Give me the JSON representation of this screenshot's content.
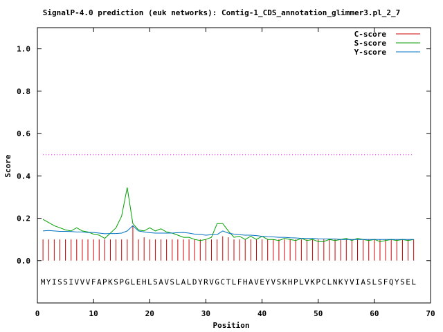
{
  "chart_data": {
    "type": "line",
    "title": "SignalP-4.0 prediction (euk networks): Contig-1_CDS_annotation_glimmer3.pl_2_7",
    "xlabel": "Position",
    "ylabel": "Score",
    "xlim": [
      0,
      70
    ],
    "ylim": [
      -0.2,
      1.1
    ],
    "x_ticks": [
      0,
      10,
      20,
      30,
      40,
      50,
      60,
      70
    ],
    "y_ticks": [
      0.0,
      0.2,
      0.4,
      0.6,
      0.8,
      1.0
    ],
    "x_tick_labels": [
      "0",
      "10",
      "20",
      "30",
      "40",
      "50",
      "60",
      "70"
    ],
    "y_tick_labels": [
      "0.0",
      "0.2",
      "0.4",
      "0.6",
      "0.8",
      "1.0"
    ],
    "threshold": 0.5,
    "sequence": "MYISSIVVVFAPKSPGLEHLSAVSLALDYRVGCTLFHAVEYVSKHPLVKPCLNKYVIASLSFQYSEL",
    "legend_position": "top-right",
    "series": [
      {
        "name": "C-score",
        "style": "impulses",
        "color": "#cc0000",
        "x": [
          1,
          2,
          3,
          4,
          5,
          6,
          7,
          8,
          9,
          10,
          11,
          12,
          13,
          14,
          15,
          16,
          17,
          18,
          19,
          20,
          21,
          22,
          23,
          24,
          25,
          26,
          27,
          28,
          29,
          30,
          31,
          32,
          33,
          34,
          35,
          36,
          37,
          38,
          39,
          40,
          41,
          42,
          43,
          44,
          45,
          46,
          47,
          48,
          49,
          50,
          51,
          52,
          53,
          54,
          55,
          56,
          57,
          58,
          59,
          60,
          61,
          62,
          63,
          64,
          65,
          66,
          67
        ],
        "values": [
          0.1,
          0.1,
          0.1,
          0.1,
          0.1,
          0.1,
          0.1,
          0.1,
          0.1,
          0.1,
          0.1,
          0.1,
          0.1,
          0.1,
          0.1,
          0.1,
          0.165,
          0.1,
          0.11,
          0.1,
          0.1,
          0.1,
          0.1,
          0.1,
          0.1,
          0.1,
          0.1,
          0.1,
          0.1,
          0.1,
          0.1,
          0.1,
          0.115,
          0.11,
          0.1,
          0.1,
          0.1,
          0.1,
          0.1,
          0.1,
          0.1,
          0.1,
          0.1,
          0.1,
          0.1,
          0.1,
          0.1,
          0.1,
          0.1,
          0.1,
          0.1,
          0.1,
          0.1,
          0.1,
          0.1,
          0.1,
          0.1,
          0.1,
          0.1,
          0.1,
          0.1,
          0.1,
          0.1,
          0.1,
          0.1,
          0.1,
          0.1
        ]
      },
      {
        "name": "S-score",
        "style": "line",
        "color": "#00a000",
        "x": [
          1,
          2,
          3,
          4,
          5,
          6,
          7,
          8,
          9,
          10,
          11,
          12,
          13,
          14,
          15,
          16,
          17,
          18,
          19,
          20,
          21,
          22,
          23,
          24,
          25,
          26,
          27,
          28,
          29,
          30,
          31,
          32,
          33,
          34,
          35,
          36,
          37,
          38,
          39,
          40,
          41,
          42,
          43,
          44,
          45,
          46,
          47,
          48,
          49,
          50,
          51,
          52,
          53,
          54,
          55,
          56,
          57,
          58,
          59,
          60,
          61,
          62,
          63,
          64,
          65,
          66,
          67
        ],
        "values": [
          0.195,
          0.18,
          0.165,
          0.155,
          0.145,
          0.14,
          0.155,
          0.14,
          0.135,
          0.125,
          0.12,
          0.105,
          0.13,
          0.155,
          0.21,
          0.345,
          0.175,
          0.145,
          0.14,
          0.155,
          0.14,
          0.15,
          0.135,
          0.13,
          0.12,
          0.11,
          0.11,
          0.1,
          0.095,
          0.1,
          0.11,
          0.175,
          0.175,
          0.14,
          0.11,
          0.115,
          0.1,
          0.115,
          0.1,
          0.115,
          0.1,
          0.1,
          0.095,
          0.105,
          0.1,
          0.095,
          0.105,
          0.095,
          0.1,
          0.09,
          0.09,
          0.1,
          0.095,
          0.1,
          0.105,
          0.095,
          0.105,
          0.1,
          0.095,
          0.1,
          0.09,
          0.095,
          0.1,
          0.095,
          0.1,
          0.095,
          0.1
        ]
      },
      {
        "name": "Y-score",
        "style": "line",
        "color": "#0070c0",
        "x": [
          1,
          2,
          3,
          4,
          5,
          6,
          7,
          8,
          9,
          10,
          11,
          12,
          13,
          14,
          15,
          16,
          17,
          18,
          19,
          20,
          21,
          22,
          23,
          24,
          25,
          26,
          27,
          28,
          29,
          30,
          31,
          32,
          33,
          34,
          35,
          36,
          37,
          38,
          39,
          40,
          41,
          42,
          43,
          44,
          45,
          46,
          47,
          48,
          49,
          50,
          51,
          52,
          53,
          54,
          55,
          56,
          57,
          58,
          59,
          60,
          61,
          62,
          63,
          64,
          65,
          66,
          67
        ],
        "values": [
          0.14,
          0.142,
          0.14,
          0.138,
          0.138,
          0.137,
          0.135,
          0.135,
          0.133,
          0.133,
          0.13,
          0.127,
          0.128,
          0.128,
          0.13,
          0.14,
          0.165,
          0.14,
          0.135,
          0.132,
          0.13,
          0.13,
          0.13,
          0.13,
          0.132,
          0.133,
          0.13,
          0.125,
          0.123,
          0.12,
          0.122,
          0.123,
          0.14,
          0.13,
          0.125,
          0.122,
          0.12,
          0.12,
          0.118,
          0.115,
          0.113,
          0.112,
          0.11,
          0.11,
          0.108,
          0.107,
          0.105,
          0.105,
          0.105,
          0.103,
          0.102,
          0.102,
          0.102,
          0.1,
          0.1,
          0.1,
          0.1,
          0.1,
          0.1,
          0.1,
          0.1,
          0.1,
          0.1,
          0.1,
          0.1,
          0.1,
          0.1
        ]
      }
    ]
  }
}
